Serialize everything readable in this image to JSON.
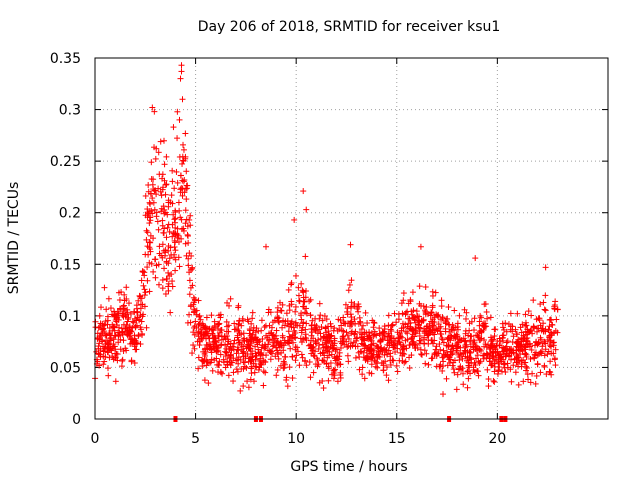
{
  "chart_data": {
    "type": "scatter",
    "title": "Day 206 of 2018, SRMTID for receiver ksu1",
    "xlabel": "GPS time / hours",
    "ylabel": "SRMTID / TECUs",
    "xlim": [
      0,
      25.5
    ],
    "ylim": [
      0,
      0.35
    ],
    "xticks": [
      0,
      5,
      10,
      15,
      20
    ],
    "yticks": [
      0,
      0.05,
      0.1,
      0.15,
      0.2,
      0.25,
      0.3,
      0.35
    ],
    "xtick_labels": [
      "0",
      "5",
      "10",
      "15",
      "20"
    ],
    "ytick_labels": [
      "0",
      "0.05",
      "0.1",
      "0.15",
      "0.2",
      "0.25",
      "0.3",
      "0.35"
    ],
    "grid": true,
    "marker": "+",
    "color": "#ff0000",
    "series": [
      {
        "name": "SRMTID",
        "envelope": [
          {
            "x": 0.0,
            "y": 0.065,
            "spread": 0.025
          },
          {
            "x": 0.5,
            "y": 0.08,
            "spread": 0.03
          },
          {
            "x": 1.0,
            "y": 0.085,
            "spread": 0.03
          },
          {
            "x": 1.5,
            "y": 0.095,
            "spread": 0.03
          },
          {
            "x": 2.0,
            "y": 0.08,
            "spread": 0.025
          },
          {
            "x": 2.3,
            "y": 0.1,
            "spread": 0.03
          },
          {
            "x": 2.6,
            "y": 0.17,
            "spread": 0.06
          },
          {
            "x": 2.9,
            "y": 0.21,
            "spread": 0.07
          },
          {
            "x": 3.3,
            "y": 0.19,
            "spread": 0.06
          },
          {
            "x": 3.7,
            "y": 0.17,
            "spread": 0.06
          },
          {
            "x": 4.1,
            "y": 0.2,
            "spread": 0.07
          },
          {
            "x": 4.4,
            "y": 0.22,
            "spread": 0.08
          },
          {
            "x": 4.7,
            "y": 0.15,
            "spread": 0.05
          },
          {
            "x": 5.0,
            "y": 0.09,
            "spread": 0.03
          },
          {
            "x": 5.5,
            "y": 0.07,
            "spread": 0.025
          },
          {
            "x": 6.5,
            "y": 0.075,
            "spread": 0.03
          },
          {
            "x": 7.5,
            "y": 0.07,
            "spread": 0.03
          },
          {
            "x": 8.0,
            "y": 0.065,
            "spread": 0.025
          },
          {
            "x": 9.0,
            "y": 0.075,
            "spread": 0.03
          },
          {
            "x": 10.0,
            "y": 0.09,
            "spread": 0.04
          },
          {
            "x": 10.5,
            "y": 0.1,
            "spread": 0.045
          },
          {
            "x": 11.0,
            "y": 0.075,
            "spread": 0.03
          },
          {
            "x": 12.0,
            "y": 0.065,
            "spread": 0.025
          },
          {
            "x": 12.7,
            "y": 0.09,
            "spread": 0.035
          },
          {
            "x": 13.5,
            "y": 0.07,
            "spread": 0.025
          },
          {
            "x": 14.5,
            "y": 0.065,
            "spread": 0.025
          },
          {
            "x": 15.5,
            "y": 0.085,
            "spread": 0.03
          },
          {
            "x": 16.5,
            "y": 0.09,
            "spread": 0.03
          },
          {
            "x": 17.5,
            "y": 0.075,
            "spread": 0.03
          },
          {
            "x": 18.5,
            "y": 0.065,
            "spread": 0.03
          },
          {
            "x": 19.5,
            "y": 0.075,
            "spread": 0.03
          },
          {
            "x": 20.0,
            "y": 0.06,
            "spread": 0.02
          },
          {
            "x": 21.0,
            "y": 0.07,
            "spread": 0.025
          },
          {
            "x": 22.0,
            "y": 0.075,
            "spread": 0.03
          },
          {
            "x": 23.0,
            "y": 0.08,
            "spread": 0.03
          }
        ],
        "x_range": [
          0.0,
          23.0
        ],
        "peak_points": [
          {
            "x": 4.3,
            "y": 0.343
          },
          {
            "x": 4.3,
            "y": 0.337
          },
          {
            "x": 4.25,
            "y": 0.33
          },
          {
            "x": 4.35,
            "y": 0.31
          },
          {
            "x": 2.85,
            "y": 0.302
          },
          {
            "x": 2.95,
            "y": 0.298
          },
          {
            "x": 4.2,
            "y": 0.29
          },
          {
            "x": 3.9,
            "y": 0.283
          },
          {
            "x": 10.35,
            "y": 0.221
          },
          {
            "x": 10.5,
            "y": 0.203
          },
          {
            "x": 9.9,
            "y": 0.193
          },
          {
            "x": 16.2,
            "y": 0.167
          },
          {
            "x": 12.7,
            "y": 0.169
          },
          {
            "x": 8.5,
            "y": 0.167
          },
          {
            "x": 18.9,
            "y": 0.156
          },
          {
            "x": 22.4,
            "y": 0.147
          }
        ]
      }
    ],
    "gap_markers_x": [
      4.0,
      8.0,
      8.25,
      17.6,
      20.2,
      20.4
    ]
  }
}
